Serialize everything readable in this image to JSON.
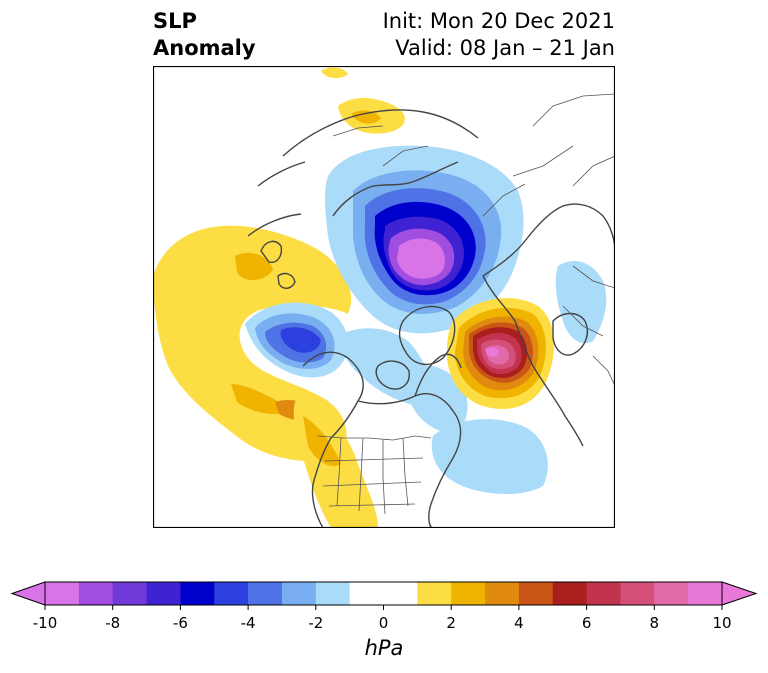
{
  "header": {
    "left_title_line1": "SLP",
    "left_title_line2": "Anomaly",
    "init_label": "Init: Mon 20 Dec 2021",
    "valid_label": "Valid: 08 Jan – 21 Jan"
  },
  "map": {
    "projection": "north-polar-stereographic",
    "region": "Northern Hemisphere (North America, Arctic, Eurasia)",
    "features": {
      "coastlines": true,
      "country_borders": true,
      "us_state_borders": true
    },
    "anomalies": [
      {
        "region": "Arctic / Siberia",
        "sign": "negative",
        "min_hpa": -10
      },
      {
        "region": "North Atlantic / Scandinavia",
        "sign": "positive",
        "max_hpa": 10
      },
      {
        "region": "North Pacific / Alaska",
        "sign": "negative",
        "min_hpa": -6
      },
      {
        "region": "Northeast Pacific",
        "sign": "positive",
        "max_hpa": 4
      },
      {
        "region": "Western United States",
        "sign": "positive",
        "max_hpa": 4
      },
      {
        "region": "Western Atlantic",
        "sign": "negative",
        "min_hpa": -2
      }
    ]
  },
  "colorbar": {
    "units": "hPa",
    "min": -10,
    "max": 10,
    "step": 1,
    "extend": "both",
    "tick_values": [
      -10,
      -8,
      -6,
      -4,
      -2,
      0,
      2,
      4,
      6,
      8,
      10
    ],
    "tick_labels": [
      "-10",
      "-8",
      "-6",
      "-4",
      "-2",
      "0",
      "2",
      "4",
      "6",
      "8",
      "10"
    ],
    "colors": [
      "#d874e8",
      "#a04de0",
      "#6f3ad8",
      "#3f22d2",
      "#0000cc",
      "#2b40de",
      "#4f73e6",
      "#79aff0",
      "#aadcfa",
      "#ffffff",
      "#ffffff",
      "#fddd44",
      "#f0b400",
      "#e08b10",
      "#c95516",
      "#aa1e1e",
      "#c2334e",
      "#d45078",
      "#e06aaa",
      "#e879d8"
    ],
    "low_extend_color": "#d874e8",
    "high_extend_color": "#e879d8"
  }
}
